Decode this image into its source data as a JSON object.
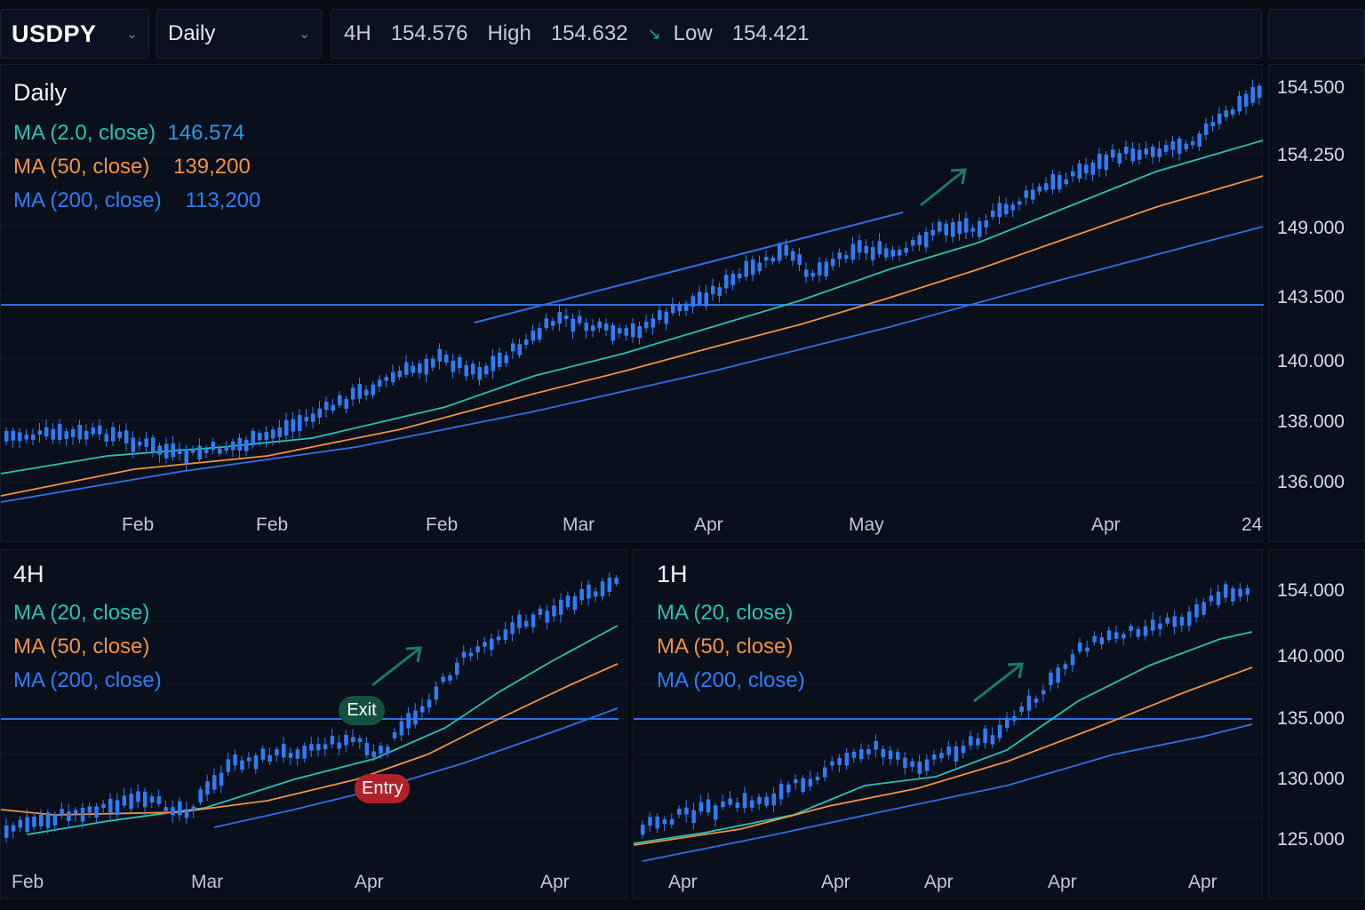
{
  "toolbar": {
    "symbol": "USDPY",
    "timeframe": "Daily",
    "quote": {
      "interval": "4H",
      "last": "154.576",
      "high_label": "High",
      "high": "154.632",
      "low_label": "Low",
      "low": "154.421"
    }
  },
  "colors": {
    "bull": "#2f7df5",
    "ma_fast": "#27c3b4",
    "ma_mid": "#f2913f",
    "ma_slow": "#2f6fe5",
    "hline": "#2f6fe5",
    "arrow": "#1b7a6a",
    "entry": "#b0222a",
    "exit": "#14503f",
    "background": "#0a0f1c"
  },
  "panels": {
    "daily": {
      "title": "Daily",
      "legend": [
        {
          "label": "MA (2.0, close)",
          "value": "146.574"
        },
        {
          "label": "MA (50, close)",
          "value": "139,200"
        },
        {
          "label": "MA (200, close)",
          "value": "113,200"
        }
      ],
      "x_labels": [
        "Feb",
        "Feb",
        "Feb",
        "Mar",
        "Apr",
        "May",
        "Apr",
        "24"
      ],
      "price_labels": [
        "154.500",
        "154.250",
        "149.000",
        "143.500",
        "140.000",
        "138.000",
        "136.000"
      ]
    },
    "h4": {
      "title": "4H",
      "legend": [
        {
          "label": "MA (20, close)"
        },
        {
          "label": "MA (50, close)"
        },
        {
          "label": "MA (200, close)"
        }
      ],
      "x_labels": [
        "Feb",
        "Mar",
        "Apr",
        "Apr"
      ],
      "badges": {
        "exit": "Exit",
        "entry": "Entry"
      }
    },
    "h1": {
      "title": "1H",
      "legend": [
        {
          "label": "MA (20, close)"
        },
        {
          "label": "MA (50, close)"
        },
        {
          "label": "MA (200, close)"
        }
      ],
      "x_labels": [
        "Apr",
        "Apr",
        "Apr",
        "Apr",
        "Apr"
      ],
      "price_labels": [
        "154.000",
        "140.000",
        "135.000",
        "130.000",
        "125.000"
      ]
    }
  }
}
